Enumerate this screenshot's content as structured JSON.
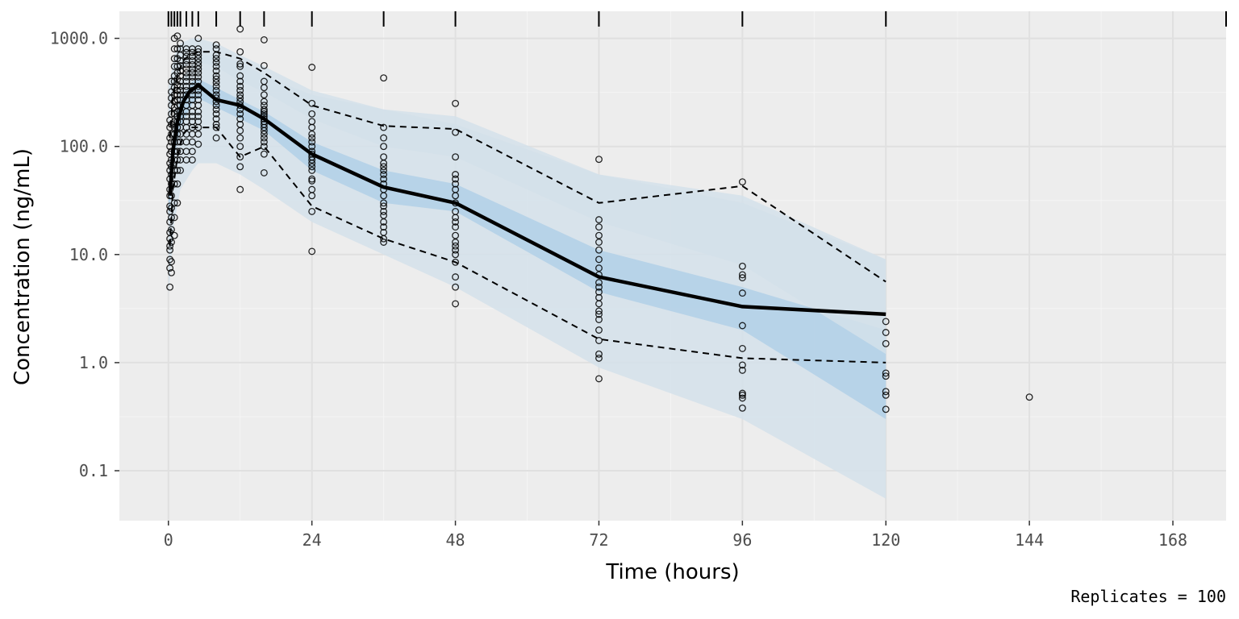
{
  "chart_data": {
    "type": "scatter",
    "title": "",
    "xlabel": "Time (hours)",
    "ylabel": "Concentration (ng/mL)",
    "caption": "Replicates = 100",
    "x_scale": "linear",
    "y_scale": "log10",
    "xlim": [
      -8.2,
      176.9
    ],
    "ylim": [
      0.0345,
      1780
    ],
    "x_ticks": [
      0,
      24,
      48,
      72,
      96,
      120,
      144,
      168
    ],
    "x_tick_labels": [
      "0",
      "24",
      "48",
      "72",
      "96",
      "120",
      "144",
      "168"
    ],
    "y_ticks": [
      0.1,
      1,
      10,
      100,
      1000
    ],
    "y_tick_labels": [
      "0.1",
      "1.0",
      "10.0",
      "100.0",
      "1000.0"
    ],
    "grid": true,
    "background": "#ededed",
    "colors": {
      "band_outer": "#d3e0ea",
      "band_inner": "#b2d0e8",
      "median_line": "#000000",
      "percentile_lines": "#000000",
      "points": "#000000"
    },
    "bin_rug": [
      0,
      0.5,
      1,
      1.5,
      2,
      3,
      4,
      5,
      8,
      12,
      16,
      24,
      36,
      48,
      72,
      96,
      120,
      176.9
    ],
    "bands": [
      {
        "name": "outer_lower",
        "x": [
          0,
          1,
          2,
          4,
          5,
          8,
          12,
          16,
          24,
          36,
          48,
          72,
          96,
          120
        ],
        "lo": [
          4,
          20,
          40,
          60,
          70,
          70,
          55,
          40,
          20,
          10,
          5,
          0.9,
          0.3,
          0.055
        ],
        "hi": [
          60,
          200,
          400,
          600,
          700,
          700,
          600,
          450,
          300,
          220,
          160,
          55,
          30,
          9
        ]
      },
      {
        "name": "median",
        "x": [
          0,
          1,
          2,
          4,
          5,
          8,
          12,
          16,
          24,
          36,
          48,
          72,
          96,
          120
        ],
        "lo": [
          20,
          80,
          150,
          250,
          280,
          230,
          180,
          140,
          60,
          30,
          25,
          4.5,
          2,
          0.3
        ],
        "hi": [
          40,
          150,
          270,
          400,
          420,
          350,
          270,
          210,
          110,
          60,
          45,
          11,
          5,
          2
        ]
      },
      {
        "name": "outer_upper",
        "x": [
          0,
          1,
          2,
          4,
          5,
          8,
          12,
          16,
          24,
          36,
          48,
          72,
          96,
          120
        ],
        "lo": [
          150,
          350,
          500,
          600,
          600,
          550,
          400,
          320,
          180,
          100,
          80,
          20,
          8,
          1.2
        ],
        "hi": [
          350,
          700,
          900,
          1000,
          1000,
          900,
          700,
          550,
          330,
          220,
          190,
          55,
          35,
          9
        ]
      }
    ],
    "series": [
      {
        "name": "observed_median",
        "style": "solid",
        "x": [
          0.25,
          0.75,
          1.5,
          2.5,
          3.5,
          5,
          8,
          12,
          16,
          24,
          36,
          48,
          72,
          96,
          120
        ],
        "y": [
          35,
          90,
          170,
          260,
          320,
          370,
          270,
          240,
          180,
          85,
          42,
          30,
          6.2,
          3.3,
          2.8
        ]
      },
      {
        "name": "observed_p05",
        "style": "dashed",
        "x": [
          0.25,
          0.75,
          1.5,
          2.5,
          3.5,
          5,
          8,
          12,
          16,
          24,
          36,
          48,
          72,
          96,
          120
        ],
        "y": [
          12,
          40,
          80,
          130,
          150,
          150,
          150,
          80,
          100,
          28,
          14,
          8.5,
          1.65,
          1.1,
          1.0
        ]
      },
      {
        "name": "observed_p95",
        "style": "dashed",
        "x": [
          0.25,
          0.75,
          1.5,
          2.5,
          3.5,
          5,
          8,
          12,
          16,
          24,
          36,
          48,
          72,
          96,
          120
        ],
        "y": [
          120,
          300,
          450,
          620,
          700,
          750,
          750,
          650,
          480,
          240,
          155,
          145,
          30,
          43,
          5.6
        ]
      }
    ],
    "points": {
      "x": [
        0.25,
        0.25,
        0.25,
        0.25,
        0.25,
        0.25,
        0.25,
        0.25,
        0.25,
        0.25,
        0.25,
        0.25,
        0.25,
        0.25,
        0.25,
        0.25,
        0.25,
        0.25,
        0.25,
        0.25,
        0.5,
        0.5,
        0.5,
        0.5,
        0.5,
        0.5,
        0.5,
        0.5,
        0.5,
        0.5,
        0.5,
        0.5,
        0.5,
        0.5,
        0.5,
        0.5,
        0.5,
        0.5,
        0.5,
        0.5,
        1,
        1,
        1,
        1,
        1,
        1,
        1,
        1,
        1,
        1,
        1,
        1,
        1,
        1,
        1,
        1,
        1,
        1,
        1,
        1,
        1,
        1,
        1.5,
        1.5,
        1.5,
        1.5,
        1.5,
        1.5,
        1.5,
        1.5,
        1.5,
        1.5,
        1.5,
        1.5,
        1.5,
        1.5,
        1.5,
        1.5,
        1.5,
        1.5,
        1.5,
        1.5,
        1.5,
        1.5,
        2,
        2,
        2,
        2,
        2,
        2,
        2,
        2,
        2,
        2,
        2,
        2,
        2,
        2,
        2,
        2,
        2,
        2,
        2,
        2,
        2,
        2,
        3,
        3,
        3,
        3,
        3,
        3,
        3,
        3,
        3,
        3,
        3,
        3,
        3,
        3,
        3,
        3,
        3,
        3,
        3,
        3,
        3,
        3,
        4,
        4,
        4,
        4,
        4,
        4,
        4,
        4,
        4,
        4,
        4,
        4,
        4,
        4,
        4,
        4,
        4,
        4,
        4,
        4,
        4,
        4,
        5,
        5,
        5,
        5,
        5,
        5,
        5,
        5,
        5,
        5,
        5,
        5,
        5,
        5,
        5,
        5,
        5,
        5,
        5,
        5,
        5,
        5,
        8,
        8,
        8,
        8,
        8,
        8,
        8,
        8,
        8,
        8,
        8,
        8,
        8,
        8,
        8,
        8,
        8,
        8,
        8,
        8,
        8,
        8,
        12,
        12,
        12,
        12,
        12,
        12,
        12,
        12,
        12,
        12,
        12,
        12,
        12,
        12,
        12,
        12,
        12,
        12,
        12,
        12,
        12,
        12,
        16,
        16,
        16,
        16,
        16,
        16,
        16,
        16,
        16,
        16,
        16,
        16,
        16,
        16,
        16,
        16,
        16,
        16,
        16,
        16,
        16,
        16,
        24,
        24,
        24,
        24,
        24,
        24,
        24,
        24,
        24,
        24,
        24,
        24,
        24,
        24,
        24,
        24,
        24,
        24,
        24,
        24,
        24,
        24,
        36,
        36,
        36,
        36,
        36,
        36,
        36,
        36,
        36,
        36,
        36,
        36,
        36,
        36,
        36,
        36,
        36,
        36,
        36,
        36,
        36,
        36,
        48,
        48,
        48,
        48,
        48,
        48,
        48,
        48,
        48,
        48,
        48,
        48,
        48,
        48,
        48,
        48,
        48,
        48,
        48,
        48,
        48,
        48,
        72,
        72,
        72,
        72,
        72,
        72,
        72,
        72,
        72,
        72,
        72,
        72,
        72,
        72,
        72,
        72,
        72,
        72,
        72,
        72,
        72,
        72,
        96,
        96,
        96,
        96,
        96,
        96,
        96,
        96,
        96,
        96,
        96,
        96,
        96,
        120,
        120,
        120,
        120,
        120,
        120,
        120,
        120,
        144
      ],
      "y": [
        5,
        7.5,
        9,
        11,
        12,
        14,
        16,
        20,
        25,
        28,
        35,
        40,
        50,
        60,
        70,
        85,
        100,
        120,
        150,
        175,
        6.8,
        8.6,
        13,
        17,
        22,
        27,
        35,
        45,
        55,
        65,
        75,
        90,
        110,
        130,
        160,
        200,
        240,
        280,
        320,
        400,
        15,
        22,
        30,
        45,
        60,
        75,
        90,
        110,
        130,
        150,
        170,
        200,
        230,
        260,
        300,
        350,
        400,
        450,
        550,
        650,
        800,
        1000,
        30,
        45,
        60,
        75,
        90,
        110,
        130,
        150,
        170,
        190,
        210,
        240,
        270,
        300,
        330,
        370,
        420,
        480,
        550,
        650,
        800,
        1050,
        60,
        75,
        90,
        110,
        130,
        150,
        170,
        190,
        210,
        240,
        270,
        300,
        330,
        360,
        400,
        450,
        500,
        560,
        620,
        700,
        800,
        900,
        75,
        90,
        110,
        130,
        150,
        170,
        190,
        210,
        240,
        270,
        300,
        330,
        360,
        400,
        440,
        480,
        520,
        570,
        620,
        680,
        740,
        800,
        75,
        90,
        110,
        130,
        150,
        170,
        190,
        210,
        240,
        270,
        300,
        330,
        360,
        400,
        440,
        480,
        520,
        570,
        620,
        680,
        740,
        800,
        105,
        130,
        150,
        170,
        190,
        210,
        240,
        270,
        300,
        330,
        360,
        400,
        440,
        480,
        520,
        560,
        600,
        650,
        700,
        750,
        800,
        1000,
        120,
        150,
        160,
        180,
        200,
        220,
        240,
        260,
        280,
        300,
        330,
        360,
        390,
        420,
        450,
        500,
        550,
        600,
        650,
        700,
        800,
        870,
        40,
        65,
        80,
        100,
        120,
        140,
        160,
        180,
        200,
        220,
        240,
        260,
        280,
        300,
        330,
        360,
        400,
        450,
        550,
        580,
        750,
        1220,
        57,
        85,
        100,
        110,
        120,
        130,
        140,
        150,
        160,
        170,
        180,
        190,
        200,
        210,
        220,
        240,
        260,
        300,
        350,
        400,
        560,
        970,
        10.7,
        25,
        35,
        40,
        48,
        50,
        60,
        65,
        70,
        75,
        80,
        85,
        90,
        100,
        110,
        120,
        130,
        150,
        170,
        200,
        250,
        540,
        13,
        14,
        16,
        18,
        20,
        23,
        25,
        28,
        30,
        35,
        40,
        45,
        50,
        55,
        60,
        65,
        70,
        80,
        100,
        120,
        150,
        430,
        3.5,
        5,
        6.2,
        8.5,
        10,
        11,
        12,
        13,
        15,
        18,
        20,
        22,
        25,
        30,
        35,
        40,
        45,
        50,
        55,
        80,
        135,
        250,
        0.71,
        1.1,
        1.2,
        1.6,
        2,
        2.5,
        2.8,
        3,
        3.5,
        4,
        4.5,
        5,
        5.5,
        6.5,
        7.5,
        9,
        11,
        13,
        15,
        18,
        21,
        76,
        0.38,
        0.47,
        0.5,
        0.52,
        0.85,
        0.95,
        1.35,
        2.2,
        4.4,
        6.1,
        6.5,
        7.8,
        47,
        0.37,
        0.54,
        0.8,
        1.5,
        1.9,
        2.4,
        0.5,
        0.75,
        0.48
      ]
    }
  }
}
